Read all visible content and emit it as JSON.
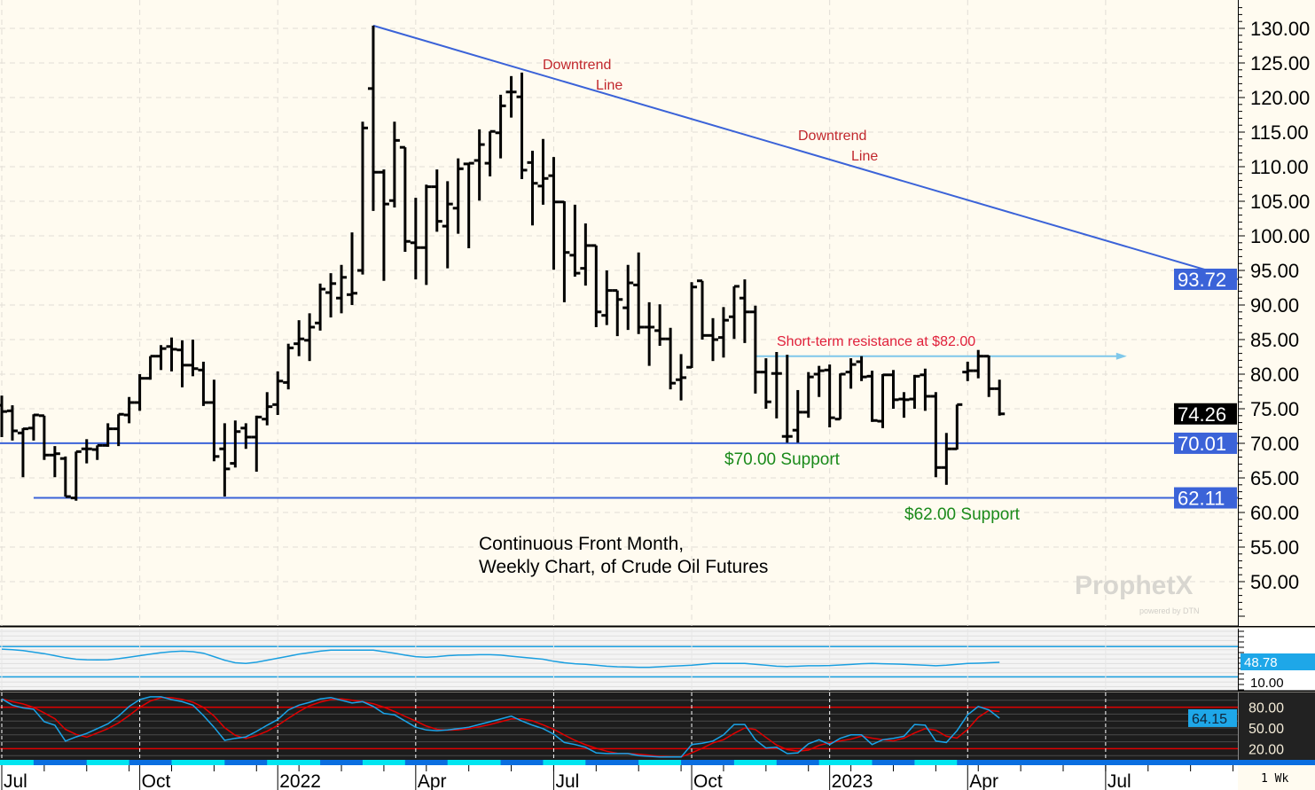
{
  "chart_data": [
    {
      "type": "ohlc",
      "interval": "1 Wk",
      "ylim": [
        45,
        133
      ],
      "yticks": [
        130,
        125,
        120,
        115,
        110,
        105,
        100,
        95,
        90,
        85,
        80,
        75,
        70,
        65,
        60,
        55,
        50
      ],
      "ytick_format": "2 decimals",
      "grid": true,
      "x_ticks": [
        {
          "date": "2021-07-05",
          "label": "Jul"
        },
        {
          "date": "2021-10-04",
          "label": "Oct"
        },
        {
          "date": "2022-01-03",
          "label": "2022"
        },
        {
          "date": "2022-04-04",
          "label": "Apr"
        },
        {
          "date": "2022-07-04",
          "label": "Jul"
        },
        {
          "date": "2022-10-03",
          "label": "Oct"
        },
        {
          "date": "2023-01-02",
          "label": "2023"
        },
        {
          "date": "2023-04-03",
          "label": "Apr"
        },
        {
          "date": "2023-07-03",
          "label": "Jul"
        }
      ],
      "bar_fields": [
        "date",
        "open",
        "high",
        "low",
        "close"
      ],
      "bars": [
        [
          "2021-07-05",
          75.5,
          76.9,
          70.9,
          74.6
        ],
        [
          "2021-07-12",
          74.7,
          75.5,
          70.4,
          71.8
        ],
        [
          "2021-07-19",
          71.5,
          72.2,
          65.1,
          72.1
        ],
        [
          "2021-07-26",
          72.2,
          74.2,
          70.4,
          74.1
        ],
        [
          "2021-08-02",
          74.0,
          74.0,
          67.6,
          68.3
        ],
        [
          "2021-08-09",
          68.3,
          69.6,
          65.1,
          68.5
        ],
        [
          "2021-08-16",
          67.8,
          68.1,
          62.3,
          62.3
        ],
        [
          "2021-08-23",
          62.1,
          68.8,
          61.7,
          68.8
        ],
        [
          "2021-08-30",
          69.2,
          70.6,
          67.1,
          69.2
        ],
        [
          "2021-09-06",
          69.1,
          69.7,
          67.6,
          69.7
        ],
        [
          "2021-09-13",
          69.7,
          72.9,
          69.5,
          72.1
        ],
        [
          "2021-09-20",
          72.1,
          74.2,
          69.6,
          74.2
        ],
        [
          "2021-09-27",
          74.1,
          76.7,
          72.9,
          75.9
        ],
        [
          "2021-10-04",
          75.9,
          80.0,
          74.7,
          79.4
        ],
        [
          "2021-10-11",
          79.4,
          82.6,
          79.2,
          82.6
        ],
        [
          "2021-10-18",
          82.6,
          84.2,
          80.6,
          83.7
        ],
        [
          "2021-10-25",
          84.0,
          85.3,
          80.4,
          83.6
        ],
        [
          "2021-11-01",
          83.5,
          84.9,
          78.1,
          81.3
        ],
        [
          "2021-11-08",
          81.3,
          85.0,
          79.7,
          80.8
        ],
        [
          "2021-11-15",
          80.6,
          81.8,
          75.4,
          75.9
        ],
        [
          "2021-11-22",
          75.9,
          79.2,
          67.4,
          68.1
        ],
        [
          "2021-11-29",
          69.2,
          72.9,
          62.3,
          66.3
        ],
        [
          "2021-12-06",
          67.1,
          73.3,
          66.5,
          71.7
        ],
        [
          "2021-12-13",
          72.2,
          72.9,
          69.2,
          70.9
        ],
        [
          "2021-12-20",
          70.9,
          74.0,
          65.9,
          73.8
        ],
        [
          "2021-12-27",
          73.5,
          77.4,
          72.6,
          75.3
        ],
        [
          "2022-01-03",
          75.6,
          80.4,
          74.1,
          79.0
        ],
        [
          "2022-01-10",
          78.8,
          84.4,
          77.8,
          83.8
        ],
        [
          "2022-01-17",
          84.4,
          87.8,
          82.6,
          85.1
        ],
        [
          "2022-01-24",
          84.9,
          88.8,
          81.9,
          86.8
        ],
        [
          "2022-01-31",
          87.4,
          93.1,
          86.3,
          92.3
        ],
        [
          "2022-02-07",
          91.8,
          94.6,
          88.2,
          93.1
        ],
        [
          "2022-02-14",
          91.0,
          95.8,
          88.8,
          94.0
        ],
        [
          "2022-02-21",
          91.5,
          100.5,
          90.0,
          91.7
        ],
        [
          "2022-02-28",
          95.0,
          116.5,
          94.4,
          115.6
        ],
        [
          "2022-03-07",
          121.3,
          130.4,
          103.6,
          109.2
        ],
        [
          "2022-03-14",
          109.2,
          109.6,
          93.5,
          104.6
        ],
        [
          "2022-03-21",
          105.1,
          116.5,
          104.1,
          113.8
        ],
        [
          "2022-03-28",
          112.8,
          112.8,
          97.7,
          99.2
        ],
        [
          "2022-04-04",
          99.0,
          105.5,
          93.7,
          98.3
        ],
        [
          "2022-04-11",
          98.3,
          107.4,
          92.9,
          107.1
        ],
        [
          "2022-04-18",
          107.1,
          109.6,
          100.6,
          102.1
        ],
        [
          "2022-04-25",
          101.4,
          107.9,
          95.3,
          104.6
        ],
        [
          "2022-05-02",
          104.0,
          111.2,
          100.3,
          109.7
        ],
        [
          "2022-05-09",
          110.4,
          110.5,
          98.2,
          110.5
        ],
        [
          "2022-05-16",
          110.9,
          115.4,
          105.1,
          113.2
        ],
        [
          "2022-05-23",
          110.5,
          115.1,
          108.6,
          115.1
        ],
        [
          "2022-05-30",
          114.9,
          120.4,
          111.2,
          118.8
        ],
        [
          "2022-06-06",
          120.8,
          123.1,
          117.1,
          120.8
        ],
        [
          "2022-06-13",
          120.1,
          123.6,
          108.2,
          109.5
        ],
        [
          "2022-06-20",
          110.6,
          112.3,
          101.5,
          107.6
        ],
        [
          "2022-06-27",
          107.2,
          114.0,
          104.5,
          108.3
        ],
        [
          "2022-07-04",
          108.7,
          111.4,
          95.1,
          104.9
        ],
        [
          "2022-07-11",
          104.9,
          105.0,
          90.4,
          97.6
        ],
        [
          "2022-07-18",
          97.2,
          104.5,
          94.1,
          94.6
        ],
        [
          "2022-07-25",
          95.3,
          101.8,
          92.8,
          98.6
        ],
        [
          "2022-08-01",
          98.6,
          98.6,
          86.8,
          89.0
        ],
        [
          "2022-08-08",
          88.5,
          95.0,
          87.1,
          92.1
        ],
        [
          "2022-08-15",
          92.1,
          92.1,
          85.5,
          90.8
        ],
        [
          "2022-08-22",
          89.6,
          95.8,
          86.4,
          93.2
        ],
        [
          "2022-08-29",
          92.9,
          97.6,
          85.8,
          86.8
        ],
        [
          "2022-09-05",
          86.8,
          90.4,
          81.2,
          86.8
        ],
        [
          "2022-09-12",
          86.3,
          90.1,
          84.1,
          85.1
        ],
        [
          "2022-09-19",
          85.1,
          86.7,
          77.8,
          78.7
        ],
        [
          "2022-09-26",
          79.2,
          82.9,
          76.2,
          79.5
        ],
        [
          "2022-10-03",
          81.0,
          93.3,
          80.9,
          92.6
        ],
        [
          "2022-10-10",
          93.5,
          93.5,
          85.0,
          85.6
        ],
        [
          "2022-10-17",
          85.6,
          88.1,
          81.9,
          85.0
        ],
        [
          "2022-10-24",
          85.3,
          89.7,
          82.4,
          87.8
        ],
        [
          "2022-10-31",
          88.3,
          92.7,
          85.1,
          92.7
        ],
        [
          "2022-11-07",
          91.0,
          93.7,
          84.5,
          89.0
        ],
        [
          "2022-11-14",
          89.0,
          89.9,
          77.2,
          80.3
        ],
        [
          "2022-11-21",
          80.3,
          82.3,
          75.0,
          76.0
        ],
        [
          "2022-11-28",
          80.1,
          83.2,
          73.6,
          80.1
        ],
        [
          "2022-12-05",
          71.0,
          82.8,
          70.1,
          71.0
        ],
        [
          "2022-12-12",
          71.9,
          77.7,
          70.1,
          74.5
        ],
        [
          "2022-12-19",
          74.5,
          80.3,
          73.7,
          79.6
        ],
        [
          "2022-12-26",
          80.0,
          81.2,
          76.7,
          80.5
        ],
        [
          "2023-01-02",
          80.6,
          81.4,
          72.3,
          73.7
        ],
        [
          "2023-01-09",
          73.5,
          80.1,
          73.5,
          80.0
        ],
        [
          "2023-01-16",
          80.3,
          82.3,
          77.9,
          81.4
        ],
        [
          "2023-01-23",
          81.8,
          82.6,
          79.0,
          79.6
        ],
        [
          "2023-01-30",
          79.7,
          80.5,
          73.1,
          73.3
        ],
        [
          "2023-02-06",
          73.2,
          80.0,
          72.2,
          79.9
        ],
        [
          "2023-02-13",
          79.9,
          80.6,
          75.0,
          76.3
        ],
        [
          "2023-02-20",
          76.4,
          77.4,
          73.7,
          76.3
        ],
        [
          "2023-02-27",
          76.4,
          79.9,
          75.0,
          79.7
        ],
        [
          "2023-03-06",
          79.9,
          80.8,
          74.7,
          76.8
        ],
        [
          "2023-03-13",
          76.8,
          77.4,
          65.1,
          66.5
        ],
        [
          "2023-03-20",
          66.5,
          71.5,
          64.0,
          69.2
        ],
        [
          "2023-03-27",
          69.2,
          75.6,
          69.1,
          75.6
        ],
        [
          "2023-04-03",
          80.3,
          81.8,
          79.0,
          80.5
        ],
        [
          "2023-04-10",
          80.5,
          83.5,
          79.4,
          82.6
        ],
        [
          "2023-04-17",
          82.6,
          82.7,
          76.7,
          77.9
        ],
        [
          "2023-04-24",
          77.9,
          79.2,
          74.0,
          74.26
        ]
      ],
      "price_labels": [
        {
          "value": "93.72",
          "price": 93.72,
          "bg": "#3b63d8",
          "fg": "#ffffff"
        },
        {
          "value": "74.26",
          "price": 74.26,
          "bg": "#000000",
          "fg": "#ffffff"
        },
        {
          "value": "70.01",
          "price": 70.01,
          "bg": "#3b63d8",
          "fg": "#ffffff"
        },
        {
          "value": "62.11",
          "price": 62.11,
          "bg": "#3b63d8",
          "fg": "#ffffff"
        }
      ],
      "trendlines": [
        {
          "name": "downtrend-line",
          "from": [
            "2022-03-07",
            130.4
          ],
          "to_price_at_axis": 93.72,
          "color": "#3b63d8"
        },
        {
          "name": "support-70",
          "price": 70.01,
          "color": "#3b63d8"
        },
        {
          "name": "support-62",
          "price": 62.11,
          "from": "2021-07-26",
          "color": "#3b63d8"
        },
        {
          "name": "resistance-82",
          "price": 82.6,
          "from": "2022-11-14",
          "to": "2023-07-17",
          "color": "#7fc8ea",
          "arrow": true
        }
      ],
      "annotations": [
        {
          "text": "Downtrend",
          "color": "#c1272d"
        },
        {
          "text": "Line",
          "color": "#c1272d"
        },
        {
          "text": "Downtrend",
          "color": "#c1272d"
        },
        {
          "text": "Line",
          "color": "#c1272d"
        },
        {
          "text": "Short-term resistance at $82.00",
          "color": "#e0203a"
        },
        {
          "text": "$70.00 Support",
          "color": "#1a8a1a"
        },
        {
          "text": "$62.00 Support",
          "color": "#1a8a1a"
        }
      ],
      "title_lines": [
        "Continuous Front Month,",
        "Weekly Chart, of Crude Oil Futures"
      ]
    },
    {
      "type": "line",
      "panel": "middle",
      "ylim": [
        0,
        100
      ],
      "levels": [
        80,
        20
      ],
      "axis_labels": [
        "10.00"
      ],
      "last_value_label": "48.78",
      "color": "#1a9fe0",
      "values": [
        75,
        74,
        72,
        69,
        66,
        62,
        58,
        55,
        54,
        53.5,
        54,
        56,
        59,
        62,
        65,
        68,
        70,
        71,
        70,
        67,
        60,
        53,
        48,
        46.5,
        49,
        53,
        57,
        61,
        65,
        68,
        71,
        73,
        73,
        73,
        73,
        73,
        70,
        67,
        63,
        60,
        59,
        60,
        62,
        63,
        63.5,
        64,
        64,
        63,
        61,
        59,
        57,
        55,
        51,
        48,
        46,
        45,
        43,
        41,
        40,
        39.5,
        39,
        39,
        40,
        41,
        42,
        43,
        45,
        46.5,
        46.5,
        46.5,
        46.5,
        45,
        43,
        41,
        40.5,
        41,
        42,
        42,
        42.5,
        43.5,
        44.5,
        46,
        46.5,
        46,
        45.5,
        45,
        44,
        43,
        42,
        43,
        45,
        46.5,
        47,
        48,
        48.78
      ]
    },
    {
      "type": "line",
      "panel": "lower",
      "ylim": [
        0,
        100
      ],
      "levels": [
        80,
        20
      ],
      "axis_labels": [
        "80.00",
        "50.00",
        "20.00"
      ],
      "last_value_label": "64.15",
      "series": [
        {
          "color": "#1aa3e8",
          "values": [
            92,
            83,
            79,
            77,
            59,
            54,
            31,
            37,
            42,
            49,
            56,
            67,
            81,
            91,
            95,
            95,
            91,
            88,
            83,
            68,
            51,
            32,
            35,
            37,
            45,
            54,
            62,
            76,
            83,
            87,
            92,
            94,
            90,
            86,
            88,
            81,
            71,
            69,
            60,
            51,
            47,
            46,
            47,
            49,
            51,
            55,
            59,
            63,
            67,
            60,
            54,
            49,
            41,
            29,
            26,
            22,
            14,
            13,
            13,
            13,
            10,
            9,
            8,
            8,
            8,
            26,
            28,
            31,
            40,
            55,
            55,
            33,
            21,
            22,
            13,
            14,
            27,
            33,
            26,
            35,
            40,
            40,
            26,
            33,
            35,
            38,
            55,
            54,
            31,
            29,
            46,
            69,
            81,
            76,
            64.15
          ]
        },
        {
          "color": "#e00000",
          "values": [
            92,
            88,
            84.7,
            79.7,
            71.7,
            63.3,
            48,
            40.7,
            36.7,
            42.7,
            49,
            57.3,
            68,
            79.7,
            89,
            93.7,
            93.7,
            91.3,
            87.3,
            79.7,
            67.3,
            50.3,
            39.3,
            34.7,
            39,
            45.3,
            53.7,
            64,
            73.7,
            82,
            87.3,
            91,
            92,
            90,
            88,
            85,
            80,
            73.7,
            66.7,
            60,
            52.7,
            48,
            46.7,
            47.3,
            49,
            51.7,
            55,
            59,
            63,
            63.3,
            60.3,
            54.3,
            48,
            39.7,
            32,
            25.7,
            20.7,
            16.3,
            13.3,
            13,
            12,
            10.7,
            9,
            8.3,
            8,
            14,
            20.7,
            28.3,
            33,
            42,
            50,
            47.7,
            36.3,
            25.3,
            18.7,
            16.3,
            18,
            24.7,
            28.7,
            31.3,
            33.7,
            38.3,
            35.3,
            33,
            31.3,
            35.3,
            42.7,
            49,
            46.7,
            38,
            35.3,
            48,
            65.3,
            75.3,
            73.7
          ]
        }
      ]
    }
  ],
  "color_strip": {
    "colors": [
      "#0a6ee0",
      "#00e5f0"
    ],
    "future_color": "#0a6ee0"
  },
  "interval_label": "1 Wk",
  "logo": {
    "text": "ProphetX",
    "subtext": "powered by DTN"
  }
}
